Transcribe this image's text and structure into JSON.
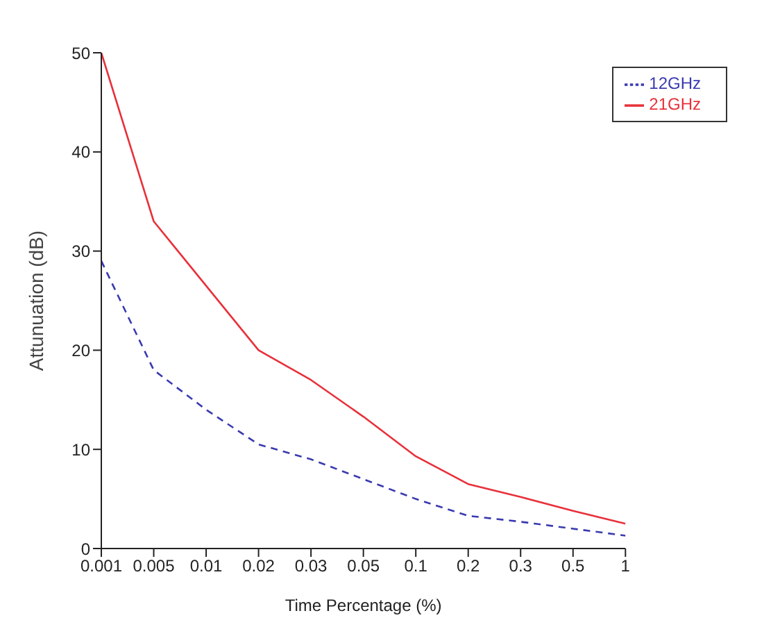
{
  "chart_data": {
    "type": "line",
    "xlabel": "Time Percentage (%)",
    "ylabel": "Attunuation (dB)",
    "categories": [
      "0.001",
      "0.005",
      "0.01",
      "0.02",
      "0.03",
      "0.05",
      "0.1",
      "0.2",
      "0.3",
      "0.5",
      "1"
    ],
    "series": [
      {
        "name": "21GHz",
        "color": "#e8303a",
        "line_style": "solid",
        "values": [
          50,
          33,
          26.5,
          20,
          17,
          13.3,
          9.3,
          6.5,
          5.2,
          3.8,
          2.5
        ]
      },
      {
        "name": "12GHz",
        "color": "#3a3ab0",
        "line_style": "dashed",
        "values": [
          29,
          18,
          14,
          10.5,
          9,
          7,
          5,
          3.3,
          2.7,
          2,
          1.3
        ]
      }
    ],
    "ylim": [
      0,
      50
    ],
    "yticks": [
      0,
      10,
      20,
      30,
      40,
      50
    ],
    "grid": false,
    "legend": "top right",
    "marker": "none"
  }
}
